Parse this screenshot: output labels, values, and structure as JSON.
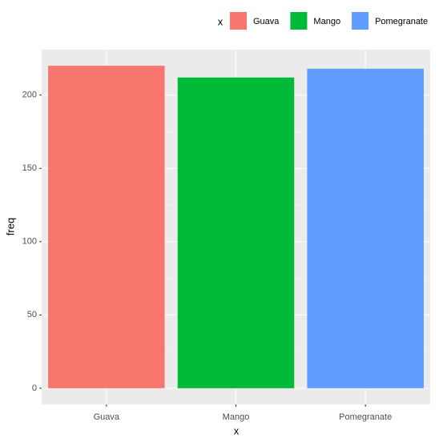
{
  "chart_data": {
    "type": "bar",
    "x_label": "x",
    "y_label": "freq",
    "legend_title": "x",
    "categories": [
      "Guava",
      "Mango",
      "Pomegranate"
    ],
    "values": [
      220,
      212,
      218
    ],
    "colors": [
      "#f8766d",
      "#00ba38",
      "#619cff"
    ],
    "ylim": [
      -11,
      231
    ],
    "yticks": [
      0,
      50,
      100,
      150,
      200
    ],
    "grid": true,
    "legend": "top"
  }
}
